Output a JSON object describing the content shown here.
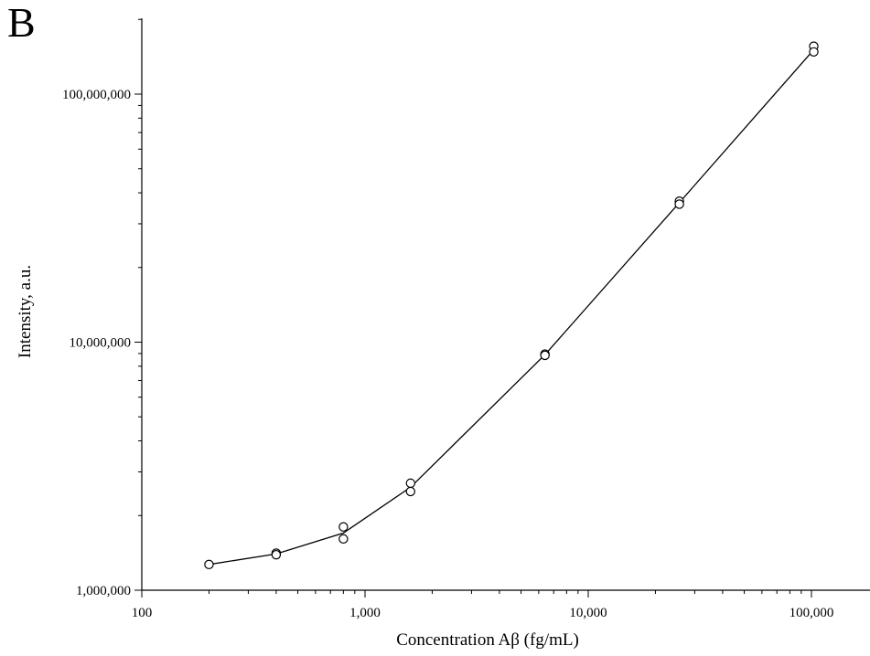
{
  "panel_label": "B",
  "chart_data": {
    "type": "line",
    "title": "",
    "xlabel": "Concentration Aβ (fg/mL)",
    "ylabel": "Intensity, a.u.",
    "x_scale": "log",
    "y_scale": "log",
    "xlim": [
      100,
      200000
    ],
    "ylim": [
      1000000,
      200000000
    ],
    "x_ticks": [
      100,
      1000,
      10000,
      100000
    ],
    "x_tick_labels": [
      "100",
      "1,000",
      "10,000",
      "100,000"
    ],
    "y_ticks": [
      1000000,
      10000000,
      100000000
    ],
    "y_tick_labels": [
      "1,000,000",
      "10,000,000",
      "100,000,000"
    ],
    "grid": false,
    "line": {
      "x": [
        200,
        400,
        800,
        1600,
        6400,
        25600,
        102400
      ],
      "y": [
        1270000,
        1400000,
        1700000,
        2600000,
        8900000,
        36500000,
        151000000
      ]
    },
    "points": {
      "x": [
        200,
        400,
        400,
        800,
        800,
        1600,
        1600,
        6400,
        6400,
        25600,
        25600,
        102400,
        102400
      ],
      "y": [
        1270000,
        1410000,
        1390000,
        1800000,
        1610000,
        2700000,
        2500000,
        8950000,
        8850000,
        37000000,
        36000000,
        156000000,
        148000000
      ]
    },
    "colors": {
      "line": "#000000",
      "marker_fill": "#ffffff",
      "marker_stroke": "#000000"
    }
  }
}
